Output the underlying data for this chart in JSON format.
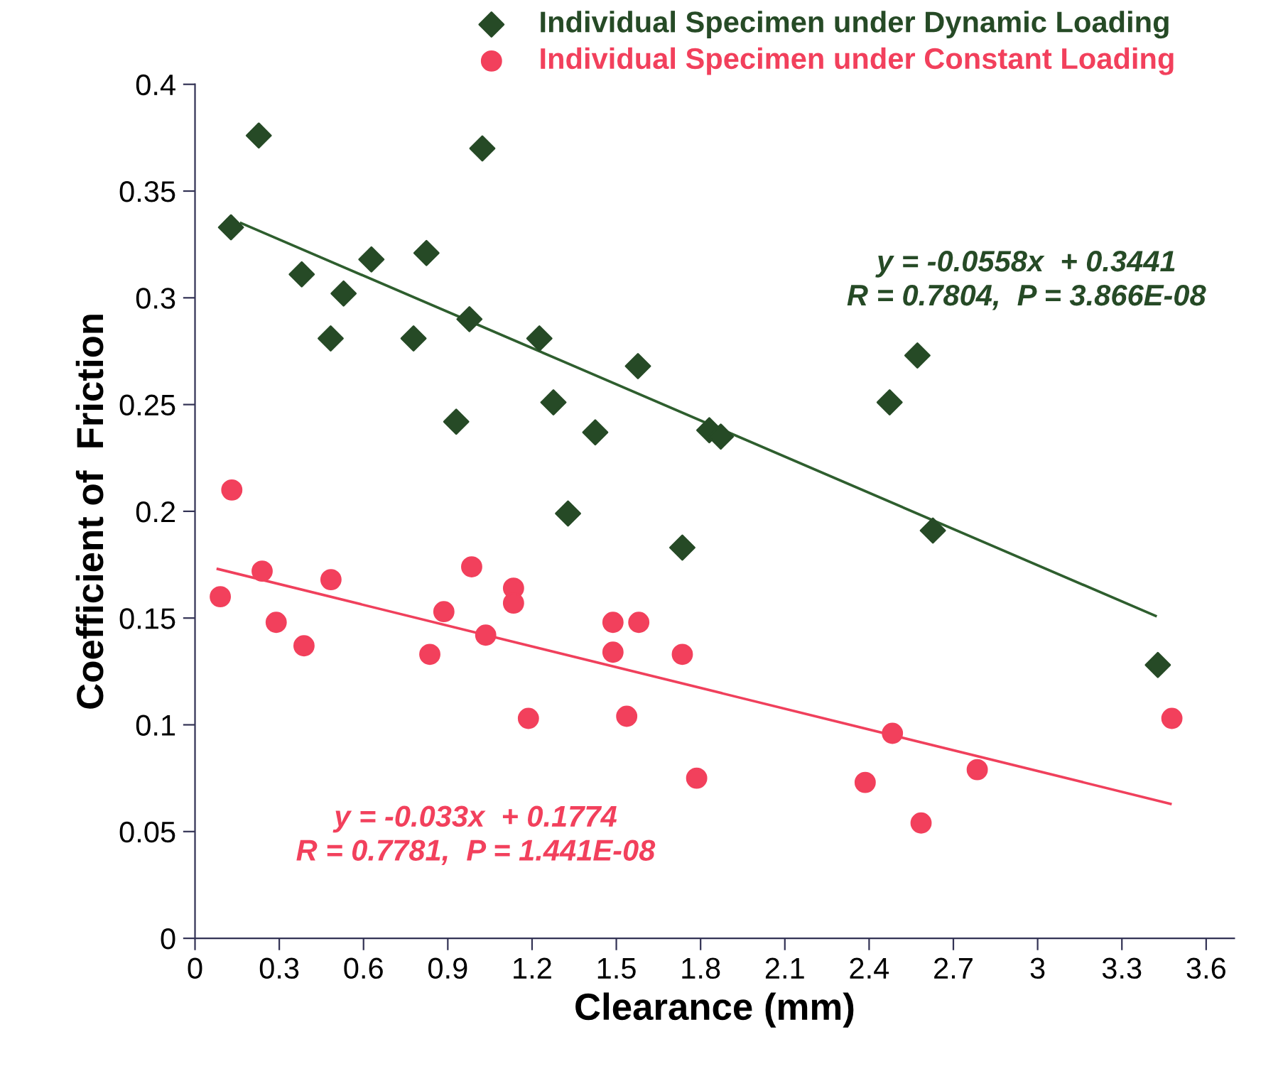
{
  "chart_data": {
    "type": "scatter",
    "xlabel": "Clearance (mm)",
    "ylabel": "Coefficient of  Friction",
    "xlim": [
      0,
      3.7
    ],
    "ylim": [
      0,
      0.4
    ],
    "xticks": [
      0,
      0.3,
      0.6,
      0.9,
      1.2,
      1.5,
      1.8,
      2.1,
      2.4,
      2.7,
      3,
      3.3,
      3.6
    ],
    "yticks": [
      0,
      0.05,
      0.1,
      0.15,
      0.2,
      0.25,
      0.3,
      0.35,
      0.4
    ],
    "grid": false,
    "legend": "top",
    "series": [
      {
        "name": "Individual Specimen under Dynamic Loading",
        "marker": "diamond",
        "color": "#264a26",
        "x": [
          0.128,
          0.227,
          0.38,
          0.529,
          0.483,
          0.628,
          0.824,
          0.778,
          0.977,
          1.023,
          0.93,
          1.226,
          1.276,
          1.577,
          1.425,
          1.831,
          1.872,
          1.328,
          1.735,
          2.572,
          2.473,
          2.627,
          3.428
        ],
        "values": [
          0.333,
          0.376,
          0.311,
          0.302,
          0.281,
          0.318,
          0.321,
          0.281,
          0.29,
          0.37,
          0.242,
          0.281,
          0.251,
          0.268,
          0.237,
          0.238,
          0.235,
          0.199,
          0.183,
          0.273,
          0.251,
          0.191,
          0.128
        ]
      },
      {
        "name": "Individual Specimen under Constant Loading",
        "marker": "circle",
        "color": "#f2405c",
        "x": [
          0.131,
          0.09,
          0.239,
          0.289,
          0.388,
          0.484,
          0.836,
          0.886,
          0.985,
          1.035,
          1.134,
          1.134,
          1.187,
          1.488,
          1.58,
          1.488,
          1.537,
          1.735,
          1.786,
          2.386,
          2.483,
          2.585,
          2.785,
          3.478
        ],
        "values": [
          0.21,
          0.16,
          0.172,
          0.148,
          0.137,
          0.168,
          0.133,
          0.153,
          0.174,
          0.142,
          0.164,
          0.157,
          0.103,
          0.148,
          0.148,
          0.134,
          0.104,
          0.133,
          0.075,
          0.073,
          0.096,
          0.054,
          0.079,
          0.103
        ]
      },
      {
        "type": "line",
        "marker": "none",
        "line_style": "solid",
        "color": "#2e5e2e",
        "x": [
          0.164,
          3.42
        ],
        "values": [
          0.335,
          0.151
        ]
      },
      {
        "type": "line",
        "marker": "none",
        "line_style": "solid",
        "color": "#f0405c",
        "x": [
          0.081,
          3.473
        ],
        "values": [
          0.173,
          0.063
        ]
      }
    ],
    "annotations": [
      "y = -0.0558x  + 0.3441\nR = 0.7804,  P = 3.866E-08",
      "y = -0.033x  + 0.1774\nR = 0.7781,  P = 1.441E-08"
    ]
  }
}
